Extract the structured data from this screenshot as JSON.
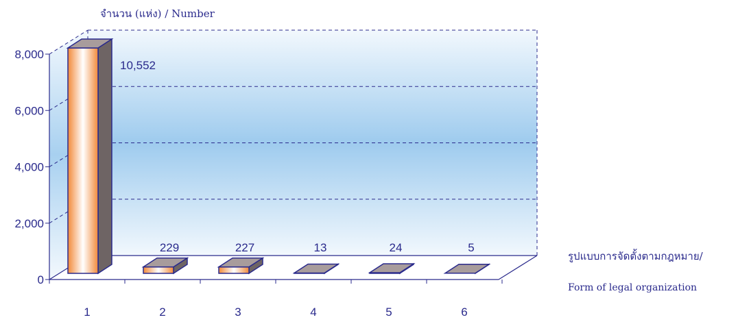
{
  "chart_data": {
    "type": "bar",
    "style": "3d",
    "ylabel": "จำนวน (แห่ง) / Number",
    "xlabel_line1": "รูปแบบการจัดตั้งตามกฎหมาย/",
    "xlabel_line2": "Form of  legal organization",
    "categories": [
      "1",
      "2",
      "3",
      "4",
      "5",
      "6"
    ],
    "values": [
      10552,
      229,
      227,
      13,
      24,
      5
    ],
    "value_labels": [
      "10,552",
      "229",
      "227",
      "13",
      "24",
      "5"
    ],
    "yticks": [
      0,
      2000,
      4000,
      6000,
      8000
    ],
    "ytick_labels": [
      "0",
      "2,000",
      "4,000",
      "6,000",
      "8,000"
    ],
    "ylim": [
      0,
      8000
    ],
    "grid": true,
    "colors": {
      "axis": "#2a2a8c",
      "bar_front_edge": "#f28a3a",
      "bar_front_center": "#ffffff",
      "bar_top": "#a89c9c",
      "bar_side": "#6e6464",
      "wall_mid": "#9ecbee",
      "wall_edge": "#f2f8fd"
    }
  }
}
